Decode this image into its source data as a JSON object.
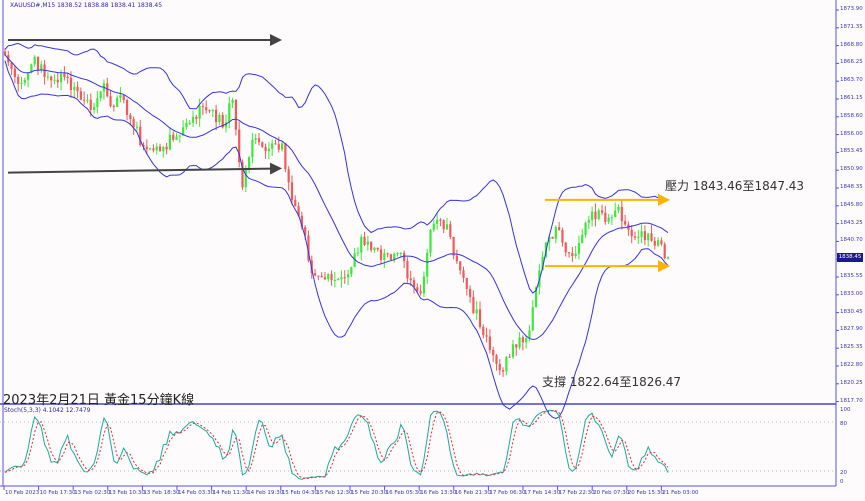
{
  "symbol_info": "XAUUSD#,M15  1838.52 1838.88 1838.41 1838.45",
  "chart_title": "2023年2月21日 黃金15分鐘K線",
  "resistance_note": "壓力 1843.46至1847.43",
  "support_note": "支撐 1822.64至1826.47",
  "stoch_label": "Stoch(5,3,3) 4.1042 12.7479",
  "current_price": "1838.45",
  "price_axis": [
    "1873.90",
    "1871.35",
    "1868.80",
    "1866.25",
    "1863.70",
    "1861.15",
    "1858.60",
    "1856.00",
    "1853.45",
    "1850.90",
    "1848.35",
    "1845.80",
    "1843.25",
    "1840.70",
    "1838.45",
    "1835.55",
    "1833.00",
    "1830.45",
    "1827.90",
    "1825.35",
    "1822.80",
    "1820.25",
    "1817.70"
  ],
  "stoch_axis": [
    "100",
    "80",
    "20",
    "0"
  ],
  "time_axis": [
    "10 Feb 2023",
    "10 Feb 17:30",
    "13 Feb 02:30",
    "13 Feb 10:30",
    "13 Feb 18:30",
    "14 Feb 03:30",
    "14 Feb 11:30",
    "14 Feb 19:30",
    "15 Feb 04:30",
    "15 Feb 12:30",
    "15 Feb 20:30",
    "16 Feb 05:30",
    "16 Feb 13:30",
    "16 Feb 21:30",
    "17 Feb 06:30",
    "17 Feb 14:30",
    "17 Feb 22:30",
    "20 Feb 07:30",
    "20 Feb 15:30",
    "21 Feb 03:00"
  ],
  "chart_data": {
    "type": "candlestick",
    "ylim": [
      1817.7,
      1873.9
    ],
    "closes": [
      1867.45,
      1864.3,
      1863.9,
      1867.2,
      1864.3,
      1863.9,
      1864.3,
      1862.9,
      1861.0,
      1860.0,
      1863.4,
      1860.0,
      1861.0,
      1857.1,
      1854.3,
      1853.8,
      1854.3,
      1855.3,
      1857.1,
      1858.6,
      1860.0,
      1859.6,
      1857.1,
      1861.0,
      1848.5,
      1855.3,
      1854.3,
      1854.8,
      1854.8,
      1846.7,
      1842.8,
      1836.2,
      1835.6,
      1835.2,
      1835.6,
      1837.1,
      1841.4,
      1839.5,
      1838.1,
      1838.1,
      1839.1,
      1835.2,
      1833.3,
      1842.4,
      1843.8,
      1841.4,
      1836.6,
      1832.8,
      1828.5,
      1825.2,
      1822.3,
      1824.2,
      1827.0,
      1828.0,
      1836.6,
      1841.4,
      1842.4,
      1839.1,
      1840.5,
      1843.8,
      1845.2,
      1844.2,
      1845.7,
      1842.4,
      1841.4,
      1841.9,
      1840.9,
      1838.45
    ],
    "indicators": [
      "Bollinger Bands",
      "Stochastic(5,3,3)"
    ],
    "trend_lines": [
      {
        "color": "#444444",
        "price_start": 1869.6,
        "price_end": 1869.6
      },
      {
        "color": "#444444",
        "price_start": 1850.6,
        "price_end": 1851.2
      }
    ],
    "zones": {
      "resistance": [
        1843.46,
        1847.43
      ],
      "support": [
        1822.64,
        1826.47
      ],
      "resistance_arrow_price": 1846.7,
      "support_arrow_price": 1837.2
    },
    "colors": {
      "bull": "#3de83d",
      "bear": "#f05a5a",
      "bands": "#3535e0",
      "arrow_zone": "#ffb300",
      "stoch_main": "#1fa8a0",
      "stoch_signal": "#e03030"
    }
  }
}
